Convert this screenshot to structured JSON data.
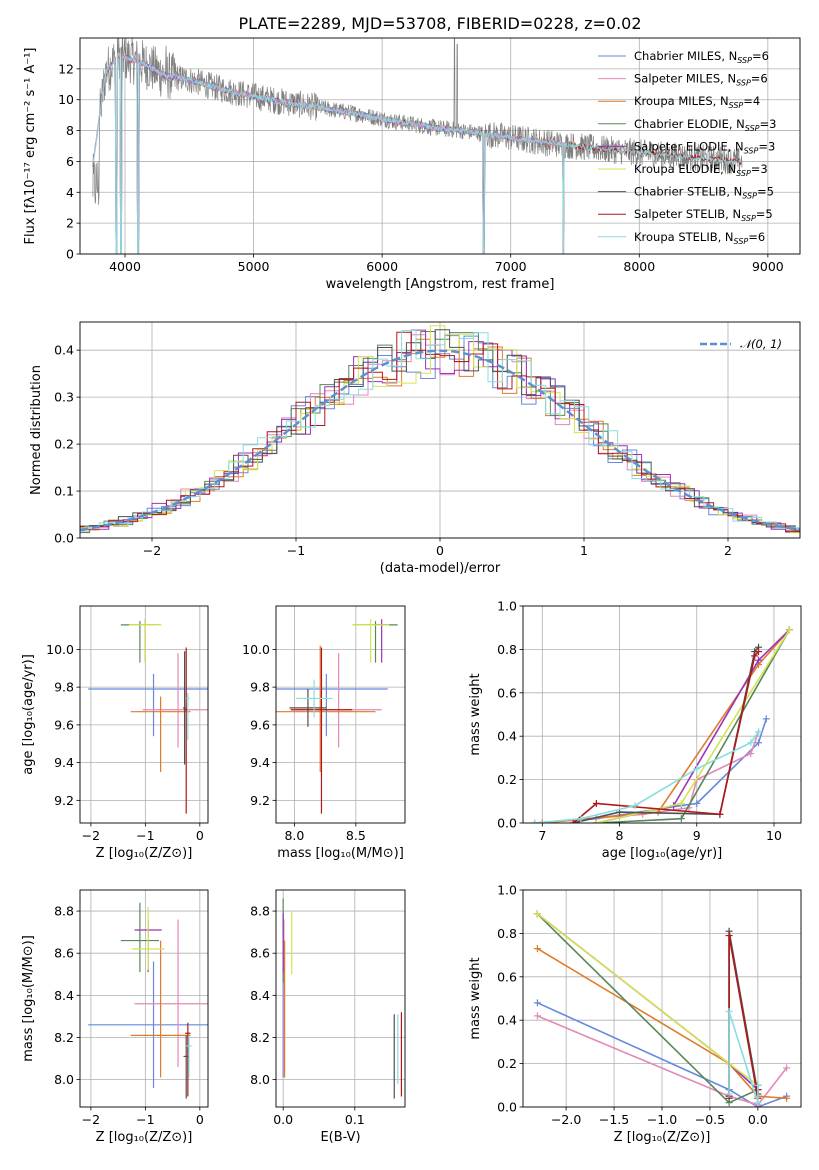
{
  "title": "PLATE=2289, MJD=53708, FIBERID=0228, z=0.02",
  "colors": {
    "Chabrier MILES": "#6688dd",
    "Salpeter MILES": "#e488b8",
    "Kroupa MILES": "#e07b28",
    "Chabrier ELODIE": "#58885a",
    "Salpeter ELODIE": "#9a34b8",
    "Kroupa ELODIE": "#d4e450",
    "Chabrier STELIB": "#505050",
    "Salpeter STELIB": "#b0181c",
    "Kroupa STELIB": "#88dde0",
    "gauss": "#5b8fd6",
    "data": "#808080"
  },
  "chart_data": [
    {
      "type": "line",
      "xlabel": "wavelength [Angstrom, rest frame]",
      "ylabel": "Flux [fλ10⁻¹⁷ erg cm⁻² s⁻¹ A⁻¹]",
      "xlim": [
        3650,
        9250
      ],
      "ylim": [
        0,
        14
      ],
      "xticks": [
        4000,
        5000,
        6000,
        7000,
        8000,
        9000
      ],
      "yticks": [
        0,
        2,
        4,
        6,
        8,
        10,
        12
      ],
      "legend_position": "upper right",
      "legend": [
        {
          "text": "Chabrier MILES, N",
          "sub": "SSP",
          "tail": "=6",
          "color_key": "Chabrier MILES"
        },
        {
          "text": "Salpeter MILES, N",
          "sub": "SSP",
          "tail": "=6",
          "color_key": "Salpeter MILES"
        },
        {
          "text": "Kroupa MILES, N",
          "sub": "SSP",
          "tail": "=4",
          "color_key": "Kroupa MILES"
        },
        {
          "text": "Chabrier ELODIE, N",
          "sub": "SSP",
          "tail": "=3",
          "color_key": "Chabrier ELODIE"
        },
        {
          "text": "Salpeter ELODIE, N",
          "sub": "SSP",
          "tail": "=3",
          "color_key": "Salpeter ELODIE"
        },
        {
          "text": "Kroupa ELODIE, N",
          "sub": "SSP",
          "tail": "=3",
          "color_key": "Kroupa ELODIE"
        },
        {
          "text": "Chabrier STELIB, N",
          "sub": "SSP",
          "tail": "=5",
          "color_key": "Chabrier STELIB"
        },
        {
          "text": "Salpeter STELIB, N",
          "sub": "SSP",
          "tail": "=5",
          "color_key": "Salpeter STELIB"
        },
        {
          "text": "Kroupa STELIB, N",
          "sub": "SSP",
          "tail": "=6",
          "color_key": "Kroupa STELIB"
        }
      ],
      "model_continuum": {
        "x": [
          3750,
          3850,
          3950,
          4050,
          4150,
          4300,
          4500,
          4700,
          4900,
          5200,
          5500,
          5800,
          6100,
          6400,
          6700,
          7000,
          7300,
          7600,
          7900,
          8200,
          8500,
          8800
        ],
        "y": [
          5.8,
          11.8,
          12.9,
          12.6,
          12.3,
          11.6,
          11.3,
          10.8,
          10.4,
          9.9,
          9.5,
          9.1,
          8.6,
          8.2,
          7.9,
          7.55,
          7.2,
          6.9,
          6.65,
          6.4,
          6.2,
          6.0
        ]
      },
      "model_ranges": {
        "MILES": [
          3750,
          7420
        ],
        "ELODIE": [
          4100,
          6800
        ],
        "STELIB": [
          3750,
          8800
        ]
      },
      "features": {
        "dips": [
          {
            "x": 3933,
            "y": 0
          },
          {
            "x": 3968,
            "y": 0
          },
          {
            "x": 4102,
            "y": 0
          },
          {
            "x": 6790,
            "y": 0
          },
          {
            "x": 7410,
            "y": 0
          }
        ],
        "spikes": [
          {
            "x": 4320,
            "y": 13.5
          },
          {
            "x": 6563,
            "y": 14
          },
          {
            "x": 6584,
            "y": 13.6
          },
          {
            "x": 5007,
            "y": 11
          }
        ]
      }
    },
    {
      "type": "step",
      "xlabel": "(data-model)/error",
      "ylabel": "Normed distribution",
      "xlim": [
        -2.5,
        2.5
      ],
      "ylim": [
        0,
        0.46
      ],
      "xticks": [
        -2,
        -1,
        0,
        1,
        2
      ],
      "yticks": [
        0.0,
        0.1,
        0.2,
        0.3,
        0.4
      ],
      "bin_width": 0.1,
      "legend_label": "𝒩(0, 1)",
      "gaussian": {
        "mu": 0,
        "sigma": 1
      }
    },
    {
      "type": "errorbar",
      "xlabel": "Z [log₁₀(Z/Z⊙)]",
      "ylabel": "age  [log₁₀(age/yr)]",
      "xlim": [
        -2.2,
        0.15
      ],
      "ylim": [
        9.08,
        10.23
      ],
      "xticks": [
        -2,
        -1,
        0
      ],
      "yticks": [
        9.2,
        9.4,
        9.6,
        9.8,
        10.0
      ],
      "points": [
        {
          "model": "Chabrier MILES",
          "x": -0.85,
          "xerr": 1.2,
          "y": 9.79,
          "yerr": [
            0.25,
            0.08
          ]
        },
        {
          "model": "Salpeter MILES",
          "x": -0.4,
          "xerr": 0.65,
          "y": 9.68,
          "yerr": [
            0.2,
            0.3
          ]
        },
        {
          "model": "Kroupa MILES",
          "x": -0.72,
          "xerr": 0.55,
          "y": 9.67,
          "yerr": [
            0.32,
            0.08
          ]
        },
        {
          "model": "Chabrier ELODIE",
          "x": -1.1,
          "xerr": 0.35,
          "y": 10.13,
          "yerr": [
            0.2,
            0.02
          ]
        },
        {
          "model": "Salpeter ELODIE",
          "x": -1.0,
          "xerr": 0.02,
          "y": 10.13,
          "yerr": [
            0.2,
            0.03
          ]
        },
        {
          "model": "Kroupa ELODIE",
          "x": -1.0,
          "xerr": 0.3,
          "y": 10.13,
          "yerr": [
            0.2,
            0.03
          ]
        },
        {
          "model": "Chabrier STELIB",
          "x": -0.28,
          "xerr": 0.03,
          "y": 9.69,
          "yerr": [
            0.3,
            0.3
          ]
        },
        {
          "model": "Salpeter STELIB",
          "x": -0.25,
          "xerr": 0.03,
          "y": 9.68,
          "yerr": [
            0.55,
            0.33
          ]
        },
        {
          "model": "Kroupa STELIB",
          "x": -0.22,
          "xerr": 0.03,
          "y": 9.74,
          "yerr": [
            0.22,
            0.03
          ]
        }
      ]
    },
    {
      "type": "errorbar",
      "xlabel": "mass [log₁₀(M/M⊙)]",
      "ylabel": "",
      "xlim": [
        7.85,
        8.9
      ],
      "ylim": [
        9.08,
        10.23
      ],
      "xticks": [
        8.0,
        8.5
      ],
      "yticks": [
        9.2,
        9.4,
        9.6,
        9.8,
        10.0
      ],
      "points": [
        {
          "model": "Chabrier MILES",
          "x": 8.26,
          "xerr": 0.5,
          "y": 9.79,
          "yerr": [
            0.25,
            0.08
          ]
        },
        {
          "model": "Salpeter MILES",
          "x": 8.36,
          "xerr": 0.35,
          "y": 9.68,
          "yerr": [
            0.2,
            0.3
          ]
        },
        {
          "model": "Kroupa MILES",
          "x": 8.21,
          "xerr": 0.45,
          "y": 9.67,
          "yerr": [
            0.32,
            0.35
          ]
        },
        {
          "model": "Chabrier ELODIE",
          "x": 8.66,
          "xerr": 0.18,
          "y": 10.13,
          "yerr": [
            0.2,
            0.02
          ]
        },
        {
          "model": "Salpeter ELODIE",
          "x": 8.71,
          "xerr": 0.05,
          "y": 10.13,
          "yerr": [
            0.2,
            0.03
          ]
        },
        {
          "model": "Kroupa ELODIE",
          "x": 8.62,
          "xerr": 0.15,
          "y": 10.13,
          "yerr": [
            0.2,
            0.03
          ]
        },
        {
          "model": "Chabrier STELIB",
          "x": 8.11,
          "xerr": 0.15,
          "y": 9.69,
          "yerr": [
            0.1,
            0.1
          ]
        },
        {
          "model": "Salpeter STELIB",
          "x": 8.22,
          "xerr": 0.25,
          "y": 9.68,
          "yerr": [
            0.55,
            0.33
          ]
        },
        {
          "model": "Kroupa STELIB",
          "x": 8.16,
          "xerr": 0.15,
          "y": 9.74,
          "yerr": [
            0.1,
            0.1
          ]
        }
      ]
    },
    {
      "type": "line",
      "xlabel": "age  [log₁₀(age/yr)]",
      "ylabel": "mass weight",
      "xlim": [
        6.75,
        10.35
      ],
      "ylim": [
        0,
        1
      ],
      "xticks": [
        7,
        8,
        9,
        10
      ],
      "yticks": [
        0.0,
        0.2,
        0.4,
        0.6,
        0.8,
        1.0
      ],
      "series": [
        {
          "model": "Chabrier MILES",
          "x": [
            6.9,
            7.7,
            8.8,
            9.0,
            9.8,
            9.9
          ],
          "y": [
            0.0,
            0.02,
            0.08,
            0.09,
            0.37,
            0.48
          ]
        },
        {
          "model": "Salpeter MILES",
          "x": [
            6.9,
            8.3,
            8.9,
            9.0,
            9.7,
            9.8
          ],
          "y": [
            0.0,
            0.04,
            0.07,
            0.2,
            0.32,
            0.42
          ]
        },
        {
          "model": "Kroupa MILES",
          "x": [
            7.0,
            8.5,
            9.8,
            10.2
          ],
          "y": [
            0.0,
            0.05,
            0.73,
            0.89
          ]
        },
        {
          "model": "Chabrier ELODIE",
          "x": [
            7.7,
            8.8,
            10.2
          ],
          "y": [
            0.0,
            0.02,
            0.89
          ]
        },
        {
          "model": "Salpeter ELODIE",
          "x": [
            7.7,
            8.7,
            9.8,
            10.2
          ],
          "y": [
            0.0,
            0.08,
            0.75,
            0.89
          ]
        },
        {
          "model": "Kroupa ELODIE",
          "x": [
            7.7,
            8.8,
            10.2
          ],
          "y": [
            0.0,
            0.09,
            0.89
          ]
        },
        {
          "model": "Chabrier STELIB",
          "x": [
            7.4,
            8.0,
            9.3,
            9.75,
            9.8
          ],
          "y": [
            0.0,
            0.05,
            0.04,
            0.79,
            0.81
          ]
        },
        {
          "model": "Salpeter STELIB",
          "x": [
            7.4,
            7.7,
            9.3,
            9.75,
            9.8
          ],
          "y": [
            0.0,
            0.09,
            0.04,
            0.77,
            0.79
          ]
        },
        {
          "model": "Kroupa STELIB",
          "x": [
            6.9,
            7.5,
            8.2,
            9.0,
            9.7,
            9.8
          ],
          "y": [
            0.0,
            0.02,
            0.08,
            0.25,
            0.37,
            0.42
          ]
        }
      ]
    },
    {
      "type": "errorbar",
      "xlabel": "Z [log₁₀(Z/Z⊙)]",
      "ylabel": "mass [log₁₀(M/M⊙)]",
      "xlim": [
        -2.2,
        0.15
      ],
      "ylim": [
        7.87,
        8.9
      ],
      "xticks": [
        -2,
        -1,
        0
      ],
      "yticks": [
        8.0,
        8.2,
        8.4,
        8.6,
        8.8
      ],
      "points": [
        {
          "model": "Chabrier MILES",
          "x": -0.85,
          "xerr": 1.2,
          "y": 8.26,
          "yerr": [
            0.3,
            0.3
          ]
        },
        {
          "model": "Salpeter MILES",
          "x": -0.4,
          "xerr": 0.8,
          "y": 8.36,
          "yerr": [
            0.3,
            0.4
          ]
        },
        {
          "model": "Kroupa MILES",
          "x": -0.72,
          "xerr": 0.55,
          "y": 8.21,
          "yerr": [
            0.2,
            0.45
          ]
        },
        {
          "model": "Chabrier ELODIE",
          "x": -1.1,
          "xerr": 0.35,
          "y": 8.66,
          "yerr": [
            0.15,
            0.18
          ]
        },
        {
          "model": "Salpeter ELODIE",
          "x": -0.95,
          "xerr": 0.25,
          "y": 8.71,
          "yerr": [
            0.2,
            0.05
          ]
        },
        {
          "model": "Kroupa ELODIE",
          "x": -0.95,
          "xerr": 0.3,
          "y": 8.62,
          "yerr": [
            0.1,
            0.2
          ]
        },
        {
          "model": "Chabrier STELIB",
          "x": -0.25,
          "xerr": 0.05,
          "y": 8.11,
          "yerr": [
            0.2,
            0.1
          ]
        },
        {
          "model": "Salpeter STELIB",
          "x": -0.22,
          "xerr": 0.05,
          "y": 8.22,
          "yerr": [
            0.3,
            0.05
          ]
        },
        {
          "model": "Kroupa STELIB",
          "x": -0.2,
          "xerr": 0.05,
          "y": 8.16,
          "yerr": [
            0.15,
            0.05
          ]
        }
      ]
    },
    {
      "type": "errorbar",
      "xlabel": "E(B-V)",
      "ylabel": "",
      "xlim": [
        -0.01,
        0.17
      ],
      "ylim": [
        7.87,
        8.9
      ],
      "xticks": [
        0.0,
        0.1
      ],
      "yticks": [
        8.0,
        8.2,
        8.4,
        8.6,
        8.8
      ],
      "points": [
        {
          "model": "Chabrier MILES",
          "x": 0.0,
          "y": 8.26,
          "yerr": [
            0.25,
            0.3
          ]
        },
        {
          "model": "Salpeter MILES",
          "x": 0.001,
          "y": 8.36,
          "yerr": [
            0.35,
            0.4
          ]
        },
        {
          "model": "Kroupa MILES",
          "x": 0.002,
          "y": 8.21,
          "yerr": [
            0.2,
            0.45
          ]
        },
        {
          "model": "Chabrier ELODIE",
          "x": 0.0,
          "y": 8.66,
          "yerr": [
            0.2,
            0.2
          ]
        },
        {
          "model": "Salpeter ELODIE",
          "x": 0.0,
          "y": 8.71,
          "yerr": [
            0.2,
            0.08
          ]
        },
        {
          "model": "Kroupa ELODIE",
          "x": 0.012,
          "y": 8.62,
          "yerr": [
            0.12,
            0.18
          ]
        },
        {
          "model": "Chabrier STELIB",
          "x": 0.155,
          "y": 8.11,
          "yerr": [
            0.2,
            0.2
          ]
        },
        {
          "model": "Salpeter STELIB",
          "x": 0.165,
          "y": 8.12,
          "yerr": [
            0.2,
            0.2
          ]
        },
        {
          "model": "Kroupa STELIB",
          "x": 0.16,
          "y": 8.16,
          "yerr": [
            0.18,
            0.15
          ]
        }
      ]
    },
    {
      "type": "line",
      "xlabel": "Z [log₁₀(Z/Z⊙)]",
      "ylabel": "mass weight",
      "xlim": [
        -2.45,
        0.45
      ],
      "ylim": [
        0,
        1
      ],
      "xticks": [
        -2.0,
        -1.5,
        -1.0,
        -0.5,
        0.0
      ],
      "yticks": [
        0.0,
        0.2,
        0.4,
        0.6,
        0.8,
        1.0
      ],
      "series": [
        {
          "model": "Chabrier MILES",
          "x": [
            -2.3,
            -0.3,
            0.0,
            0.3
          ],
          "y": [
            0.48,
            0.08,
            0.0,
            0.05
          ]
        },
        {
          "model": "Salpeter MILES",
          "x": [
            -2.3,
            -0.3,
            0.0,
            0.3
          ],
          "y": [
            0.42,
            0.05,
            0.01,
            0.18
          ]
        },
        {
          "model": "Kroupa MILES",
          "x": [
            -2.3,
            -0.3,
            0.0,
            0.3
          ],
          "y": [
            0.73,
            0.2,
            0.05,
            0.04
          ]
        },
        {
          "model": "Chabrier ELODIE",
          "x": [
            -2.3,
            -0.3,
            0.0
          ],
          "y": [
            0.89,
            0.02,
            0.08
          ]
        },
        {
          "model": "Salpeter ELODIE",
          "x": [
            -2.3,
            -0.3,
            0.0
          ],
          "y": [
            0.89,
            0.2,
            0.08
          ]
        },
        {
          "model": "Kroupa ELODIE",
          "x": [
            -2.3,
            -0.3,
            0.0
          ],
          "y": [
            0.89,
            0.2,
            0.1
          ]
        },
        {
          "model": "Chabrier STELIB",
          "x": [
            -0.3,
            -0.3,
            0.0,
            0.0
          ],
          "y": [
            0.04,
            0.81,
            0.06,
            0.1
          ]
        },
        {
          "model": "Salpeter STELIB",
          "x": [
            -0.3,
            -0.3,
            0.0,
            0.0
          ],
          "y": [
            0.05,
            0.79,
            0.04,
            0.08
          ]
        },
        {
          "model": "Kroupa STELIB",
          "x": [
            -0.3,
            -0.3,
            0.0,
            0.0
          ],
          "y": [
            0.06,
            0.44,
            0.02,
            0.1
          ]
        }
      ]
    }
  ]
}
